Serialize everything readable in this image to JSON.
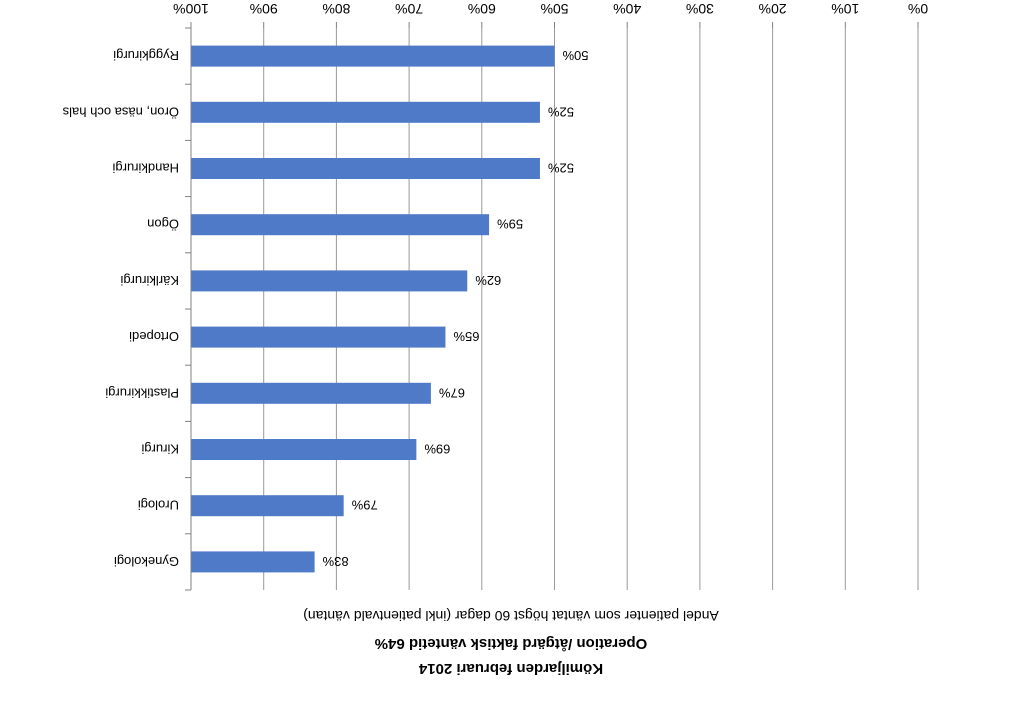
{
  "chart_data": {
    "type": "bar",
    "orientation": "horizontal",
    "rendered_rotated_180": true,
    "title": "Kömiljarden februari 2014",
    "subtitle": "Operation /åtgärd faktisk väntetid 64%",
    "ylabel": "Andel patienter som väntat högst 60 dagar (inkl patientvald väntan)",
    "xlabel": "",
    "xlim": [
      0,
      100
    ],
    "x_ticks": [
      "0%",
      "10%",
      "20%",
      "30%",
      "40%",
      "50%",
      "60%",
      "70%",
      "80%",
      "90%",
      "100%"
    ],
    "grid": true,
    "bar_color": "#4f7ac7",
    "categories": [
      "Gynekologi",
      "Urologi",
      "Kirurgi",
      "Plastikkirurgi",
      "Ortopedi",
      "Kärlkirurgi",
      "Ögon",
      "Handkirurgi",
      "Öron, näsa och hals",
      "Ryggkirurgi"
    ],
    "values": [
      83,
      79,
      69,
      67,
      65,
      62,
      59,
      52,
      52,
      50
    ],
    "data_labels": [
      "83%",
      "79%",
      "69%",
      "67%",
      "65%",
      "62%",
      "59%",
      "52%",
      "52%",
      "50%"
    ]
  }
}
